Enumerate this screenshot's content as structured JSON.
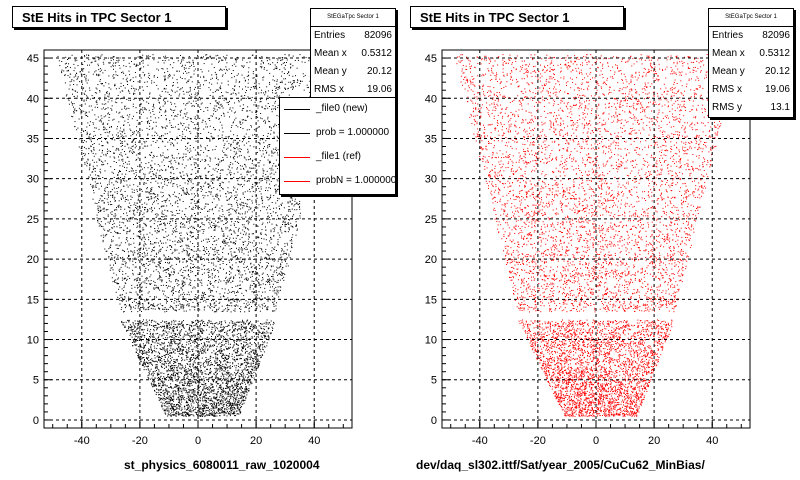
{
  "chart_data": [
    {
      "type": "scatter",
      "title": "StE Hits in TPC Sector 1",
      "xlabel": "",
      "ylabel": "",
      "xlim": [
        -53,
        53
      ],
      "ylim": [
        -1,
        46
      ],
      "xticks": [
        -40,
        -20,
        0,
        20,
        40
      ],
      "yticks": [
        0,
        5,
        10,
        15,
        20,
        25,
        30,
        35,
        40,
        45
      ],
      "grid": true,
      "color": "#000000",
      "stats": {
        "name": "StEGaTpc Sector 1",
        "entries_label": "Entries",
        "entries": "82096",
        "mean_x_label": "Mean x",
        "mean_x": "0.5312",
        "mean_y_label": "Mean y",
        "mean_y": "20.12",
        "rms_x_label": "RMS x",
        "rms_x": "19.06"
      },
      "legend": {
        "placement": "top-right",
        "entries": [
          {
            "label": "_file0 (new)",
            "color": "#000000"
          },
          {
            "label": "prob = 1.000000",
            "color": "#000000"
          },
          {
            "label": "_file1 (ref)",
            "color": "#ff0000"
          },
          {
            "label": "probN = 1.000000",
            "color": "#ff0000"
          }
        ]
      },
      "region": {
        "lower_band": {
          "y": [
            0.5,
            12.5
          ],
          "x_left_at_bottom": -11,
          "x_right_at_bottom": 14,
          "x_left_at_top": -27,
          "x_right_at_top": 27
        },
        "upper_band": {
          "y": [
            13.5,
            45.5
          ],
          "x_left_at_bottom": -27,
          "x_right_at_bottom": 27,
          "x_left_at_top": -49,
          "x_right_at_top": 49
        }
      },
      "footer": "st_physics_6080011_raw_1020004"
    },
    {
      "type": "scatter",
      "title": "StE Hits in TPC Sector 1",
      "xlabel": "",
      "ylabel": "",
      "xlim": [
        -53,
        53
      ],
      "ylim": [
        -1,
        46
      ],
      "xticks": [
        -40,
        -20,
        0,
        20,
        40
      ],
      "yticks": [
        0,
        5,
        10,
        15,
        20,
        25,
        30,
        35,
        40,
        45
      ],
      "grid": true,
      "color": "#ff0000",
      "stats": {
        "name": "StEGaTpc Sector 1",
        "entries_label": "Entries",
        "entries": "82096",
        "mean_x_label": "Mean x",
        "mean_x": "0.5312",
        "mean_y_label": "Mean y",
        "mean_y": "20.12",
        "rms_x_label": "RMS x",
        "rms_x": "19.06",
        "rms_y_label": "RMS y",
        "rms_y": "13.1"
      },
      "region": {
        "lower_band": {
          "y": [
            0.5,
            12.5
          ],
          "x_left_at_bottom": -11,
          "x_right_at_bottom": 14,
          "x_left_at_top": -27,
          "x_right_at_top": 27
        },
        "upper_band": {
          "y": [
            13.5,
            45.5
          ],
          "x_left_at_bottom": -27,
          "x_right_at_bottom": 27,
          "x_left_at_top": -49,
          "x_right_at_top": 49
        }
      },
      "footer": "dev/daq_sl302.ittf/Sat/year_2005/CuCu62_MinBias/"
    }
  ]
}
